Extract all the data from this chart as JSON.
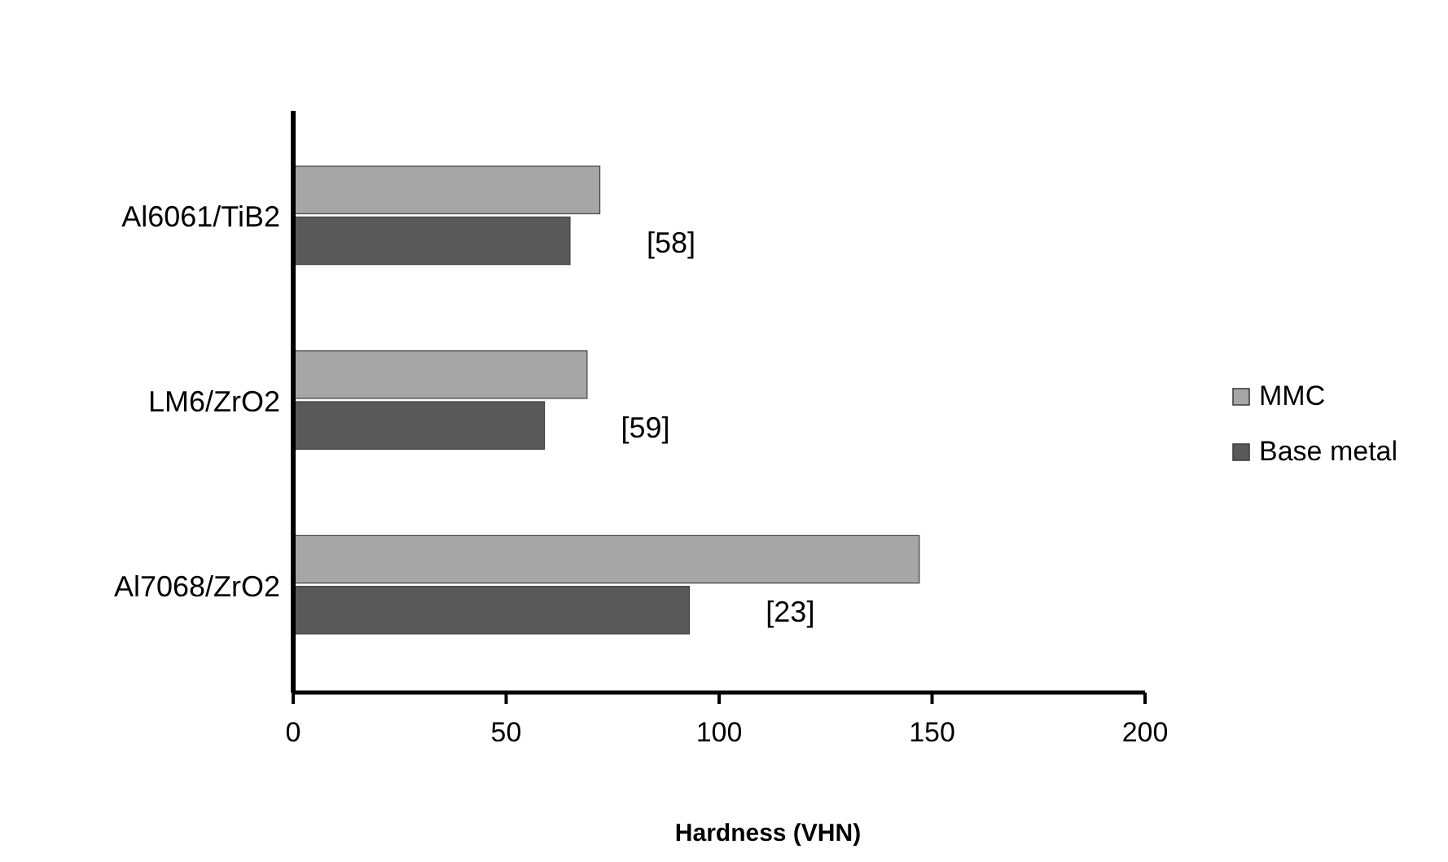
{
  "chart_data": {
    "type": "bar",
    "orientation": "horizontal",
    "xlabel": "Hardness (VHN)",
    "categories": [
      "Al6061/TiB2",
      "LM6/ZrO2",
      "Al7068/ZrO2"
    ],
    "series": [
      {
        "name": "MMC",
        "color": "#a6a6a6",
        "values": [
          72,
          69,
          147
        ]
      },
      {
        "name": "Base metal",
        "color": "#595959",
        "values": [
          65,
          59,
          93
        ]
      }
    ],
    "xlim": [
      0,
      200
    ],
    "xticks": [
      0,
      50,
      100,
      150,
      200
    ],
    "grid": false,
    "legend": "right",
    "annotations": [
      "[58]",
      "[59]",
      "[23]"
    ]
  }
}
